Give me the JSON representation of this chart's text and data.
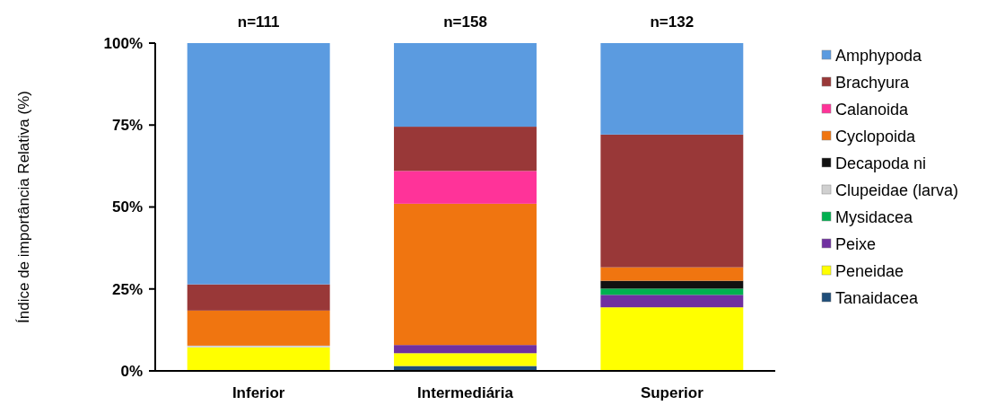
{
  "chart_data": {
    "type": "bar",
    "stacked": true,
    "ylabel": "Índice de importância Relativa (%)",
    "categories": [
      "Inferior",
      "Intermediária",
      "Superior"
    ],
    "series": [
      {
        "name": "Tanaidacea",
        "color": "#1f4e79",
        "values": [
          null,
          1.5,
          null
        ]
      },
      {
        "name": "Peneidae",
        "color": "#ffff00",
        "values": [
          7.2,
          3.9,
          19.4
        ]
      },
      {
        "name": "Peixe",
        "color": "#7030a0",
        "values": [
          null,
          2.5,
          3.8
        ]
      },
      {
        "name": "Mysidacea",
        "color": "#00b050",
        "values": [
          null,
          null,
          1.9
        ]
      },
      {
        "name": "Clupeidae (larva)",
        "color": "#d0d0d0",
        "values": [
          0.5,
          null,
          null
        ]
      },
      {
        "name": "Decapoda ni",
        "color": "#111111",
        "values": [
          null,
          null,
          2.4
        ]
      },
      {
        "name": "Cyclopoida",
        "color": "#f07510",
        "values": [
          10.7,
          43.1,
          4.1
        ]
      },
      {
        "name": "Calanoida",
        "color": "#ff3399",
        "values": [
          null,
          10,
          null
        ]
      },
      {
        "name": "Brachyura",
        "color": "#993838",
        "values": [
          8,
          13.5,
          40.5
        ]
      },
      {
        "name": "Amphypoda",
        "color": "#5b9be0",
        "values": [
          73.6,
          25.5,
          27.9
        ]
      }
    ],
    "ylim": [
      0,
      100
    ],
    "yticks": [
      {
        "value": 0,
        "label": "0%"
      },
      {
        "value": 25,
        "label": "25%"
      },
      {
        "value": 50,
        "label": "50%"
      },
      {
        "value": 75,
        "label": "75%"
      },
      {
        "value": 100,
        "label": "100%"
      }
    ],
    "annotations": [
      "n=111",
      "n=158",
      "n=132"
    ],
    "grid": false,
    "legend": "right"
  }
}
